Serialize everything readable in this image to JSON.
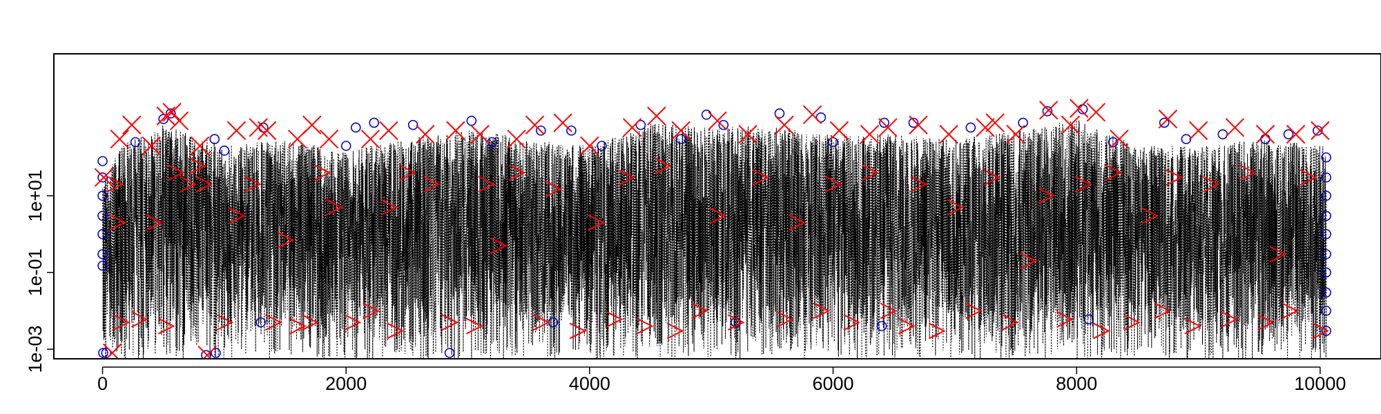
{
  "chart_data": {
    "type": "line",
    "title": "",
    "xlabel": "",
    "ylabel": "",
    "log_y": true,
    "xlim": [
      -400,
      10500
    ],
    "ylim_log10": [
      -3.25,
      4.7
    ],
    "x_ticks": [
      0,
      2000,
      4000,
      6000,
      8000,
      10000
    ],
    "x_tick_labels": [
      "0",
      "2000",
      "4000",
      "6000",
      "8000",
      "10000"
    ],
    "y_ticks": [
      0.001,
      0.1,
      10
    ],
    "y_tick_labels": [
      "1e-03",
      "1e-01",
      "1e+01"
    ],
    "grid": false,
    "legend": "none",
    "series": [
      {
        "style": "dotted line",
        "color": "#000000",
        "x_range": [
          0,
          10050
        ],
        "n_points": 10050,
        "envelope_upper": [
          [
            0,
            20
          ],
          [
            150,
            200
          ],
          [
            500,
            700
          ],
          [
            1000,
            200
          ],
          [
            1500,
            300
          ],
          [
            2000,
            150
          ],
          [
            2500,
            300
          ],
          [
            3000,
            600
          ],
          [
            3500,
            300
          ],
          [
            4000,
            200
          ],
          [
            4500,
            800
          ],
          [
            5000,
            600
          ],
          [
            5500,
            700
          ],
          [
            6000,
            400
          ],
          [
            6500,
            400
          ],
          [
            7000,
            300
          ],
          [
            7500,
            500
          ],
          [
            8000,
            1000
          ],
          [
            8500,
            200
          ],
          [
            9000,
            200
          ],
          [
            9500,
            300
          ],
          [
            10050,
            200
          ]
        ],
        "typical_low": 0.003,
        "min_value": 0.0005
      },
      {
        "marker": "circle",
        "color": "#0000cc",
        "points": [
          [
            5,
            0.0008
          ],
          [
            30,
            0.0008
          ],
          [
            850,
            0.0007
          ],
          [
            930,
            0.0008
          ],
          [
            2850,
            0.0008
          ],
          [
            0,
            0.15
          ],
          [
            0,
            0.3
          ],
          [
            0,
            1
          ],
          [
            0,
            3
          ],
          [
            0,
            10
          ],
          [
            0,
            30
          ],
          [
            0,
            80
          ],
          [
            10050,
            0.003
          ],
          [
            10050,
            0.01
          ],
          [
            10050,
            0.03
          ],
          [
            10050,
            0.1
          ],
          [
            10050,
            0.3
          ],
          [
            10050,
            1
          ],
          [
            10050,
            3
          ],
          [
            10050,
            10
          ],
          [
            10050,
            30
          ],
          [
            10050,
            100
          ],
          [
            270,
            250
          ],
          [
            500,
            1000
          ],
          [
            560,
            1400
          ],
          [
            920,
            300
          ],
          [
            1320,
            600
          ],
          [
            2080,
            600
          ],
          [
            2230,
            800
          ],
          [
            2550,
            700
          ],
          [
            3030,
            900
          ],
          [
            3600,
            500
          ],
          [
            3850,
            500
          ],
          [
            4420,
            700
          ],
          [
            4960,
            1300
          ],
          [
            5100,
            700
          ],
          [
            5560,
            1400
          ],
          [
            5900,
            1100
          ],
          [
            6420,
            800
          ],
          [
            6660,
            800
          ],
          [
            7130,
            600
          ],
          [
            7560,
            800
          ],
          [
            7760,
            1600
          ],
          [
            8050,
            1800
          ],
          [
            8720,
            800
          ],
          [
            9200,
            400
          ],
          [
            9740,
            400
          ],
          [
            9980,
            500
          ],
          [
            4100,
            200
          ],
          [
            1000,
            150
          ],
          [
            3200,
            250
          ],
          [
            6000,
            250
          ],
          [
            8300,
            250
          ],
          [
            2000,
            200
          ],
          [
            4750,
            300
          ],
          [
            8900,
            300
          ],
          [
            9550,
            300
          ],
          [
            3700,
            0.005
          ],
          [
            5200,
            0.005
          ],
          [
            6400,
            0.004
          ],
          [
            8100,
            0.006
          ],
          [
            1300,
            0.005
          ]
        ]
      },
      {
        "marker": "x",
        "color": "#ff0000",
        "points": [
          [
            80,
            0.0008
          ],
          [
            860,
            0.0007
          ],
          [
            10,
            30
          ],
          [
            140,
            300
          ],
          [
            240,
            700
          ],
          [
            400,
            200
          ],
          [
            520,
            1200
          ],
          [
            570,
            1500
          ],
          [
            630,
            900
          ],
          [
            800,
            200
          ],
          [
            1100,
            500
          ],
          [
            1280,
            600
          ],
          [
            1350,
            500
          ],
          [
            1600,
            300
          ],
          [
            1720,
            700
          ],
          [
            1860,
            300
          ],
          [
            2200,
            300
          ],
          [
            2350,
            500
          ],
          [
            2650,
            400
          ],
          [
            2900,
            500
          ],
          [
            3100,
            400
          ],
          [
            3400,
            300
          ],
          [
            3550,
            700
          ],
          [
            3780,
            800
          ],
          [
            4000,
            200
          ],
          [
            4350,
            600
          ],
          [
            4550,
            1200
          ],
          [
            4750,
            500
          ],
          [
            5050,
            900
          ],
          [
            5300,
            400
          ],
          [
            5600,
            700
          ],
          [
            5830,
            1300
          ],
          [
            6050,
            500
          ],
          [
            6300,
            400
          ],
          [
            6450,
            600
          ],
          [
            6700,
            700
          ],
          [
            6950,
            400
          ],
          [
            7250,
            600
          ],
          [
            7330,
            800
          ],
          [
            7500,
            400
          ],
          [
            7770,
            1700
          ],
          [
            7950,
            700
          ],
          [
            8020,
            1900
          ],
          [
            8160,
            1500
          ],
          [
            8350,
            300
          ],
          [
            8750,
            1000
          ],
          [
            9000,
            500
          ],
          [
            9300,
            600
          ],
          [
            9550,
            400
          ],
          [
            9800,
            400
          ],
          [
            10000,
            500
          ]
        ]
      },
      {
        "marker": "chevron-right",
        "color": "#ff0000",
        "points": [
          [
            100,
            20
          ],
          [
            120,
            2
          ],
          [
            150,
            0.005
          ],
          [
            300,
            0.006
          ],
          [
            420,
            2
          ],
          [
            520,
            0.004
          ],
          [
            600,
            40
          ],
          [
            700,
            20
          ],
          [
            780,
            60
          ],
          [
            830,
            20
          ],
          [
            1000,
            0.005
          ],
          [
            1100,
            3
          ],
          [
            1230,
            20
          ],
          [
            1400,
            0.005
          ],
          [
            1500,
            0.7
          ],
          [
            1600,
            0.004
          ],
          [
            1700,
            0.005
          ],
          [
            1800,
            40
          ],
          [
            1900,
            5
          ],
          [
            2050,
            0.005
          ],
          [
            2200,
            0.01
          ],
          [
            2350,
            5
          ],
          [
            2400,
            0.003
          ],
          [
            2500,
            40
          ],
          [
            2700,
            20
          ],
          [
            2850,
            0.005
          ],
          [
            3050,
            0.004
          ],
          [
            3150,
            20
          ],
          [
            3250,
            0.5
          ],
          [
            3400,
            40
          ],
          [
            3600,
            0.005
          ],
          [
            3700,
            15
          ],
          [
            3900,
            0.003
          ],
          [
            4050,
            2
          ],
          [
            4200,
            0.006
          ],
          [
            4300,
            30
          ],
          [
            4450,
            0.004
          ],
          [
            4600,
            60
          ],
          [
            4700,
            0.003
          ],
          [
            4900,
            0.01
          ],
          [
            5050,
            3
          ],
          [
            5200,
            0.005
          ],
          [
            5400,
            30
          ],
          [
            5600,
            0.006
          ],
          [
            5700,
            2
          ],
          [
            5900,
            0.01
          ],
          [
            6000,
            20
          ],
          [
            6150,
            0.005
          ],
          [
            6300,
            40
          ],
          [
            6450,
            0.01
          ],
          [
            6600,
            0.004
          ],
          [
            6700,
            20
          ],
          [
            6850,
            0.003
          ],
          [
            7000,
            5
          ],
          [
            7150,
            0.01
          ],
          [
            7300,
            30
          ],
          [
            7450,
            0.005
          ],
          [
            7600,
            0.2
          ],
          [
            7750,
            10
          ],
          [
            7900,
            0.006
          ],
          [
            8050,
            20
          ],
          [
            8200,
            0.003
          ],
          [
            8300,
            40
          ],
          [
            8450,
            0.005
          ],
          [
            8600,
            3
          ],
          [
            8700,
            0.01
          ],
          [
            8800,
            30
          ],
          [
            8950,
            0.004
          ],
          [
            9100,
            20
          ],
          [
            9250,
            0.006
          ],
          [
            9400,
            40
          ],
          [
            9550,
            0.005
          ],
          [
            9650,
            0.3
          ],
          [
            9750,
            0.01
          ],
          [
            9900,
            30
          ],
          [
            10000,
            0.003
          ]
        ]
      }
    ]
  }
}
